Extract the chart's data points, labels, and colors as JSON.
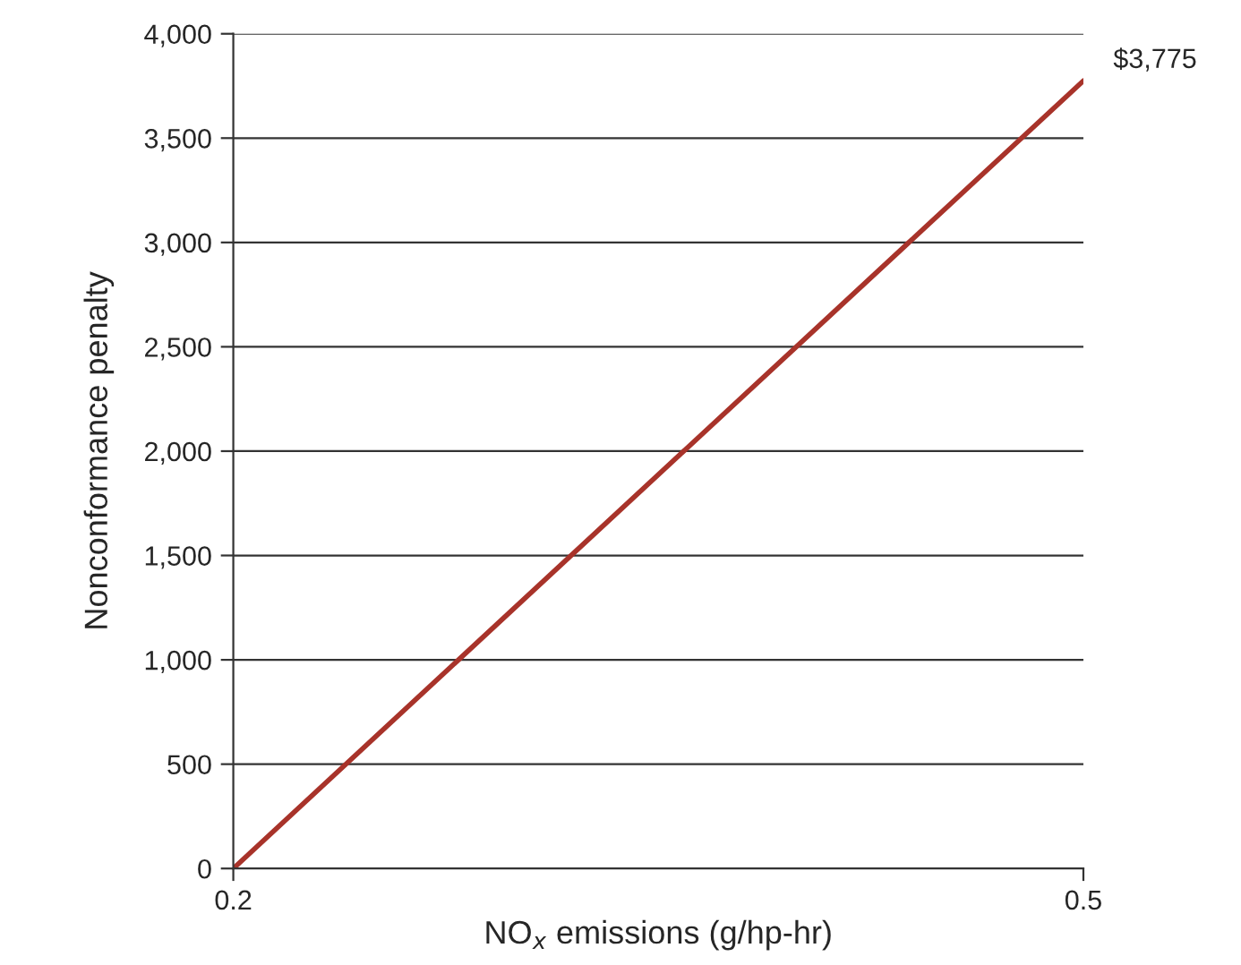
{
  "chart_data": {
    "type": "line",
    "xlabel": "NO$_{x}$ emissions (g/hp-hr)",
    "ylabel": "Nonconformance penalty",
    "x": [
      0.2,
      0.5
    ],
    "series": [
      {
        "color": "#a8332a",
        "values": [
          0,
          3775
        ]
      }
    ],
    "annotations": [
      {
        "text": "$3,775",
        "x": 0.5,
        "y": 3775
      }
    ],
    "xlim": [
      0.2,
      0.5
    ],
    "xticks": [
      0.2,
      0.5
    ],
    "ylim": [
      0,
      4000
    ],
    "yticks": [
      0,
      500,
      {
        "value": 1000,
        "label": "1,000"
      },
      {
        "value": 1500,
        "label": "1,500"
      },
      {
        "value": 2000,
        "label": "2,000"
      },
      {
        "value": 2500,
        "label": "2,500"
      },
      {
        "value": 3000,
        "label": "3,000"
      },
      {
        "value": 3500,
        "label": "3,500"
      },
      {
        "value": 4000,
        "label": "4,000"
      }
    ],
    "grid": "y",
    "legend": false,
    "marker": "none",
    "line_style": "solid"
  }
}
